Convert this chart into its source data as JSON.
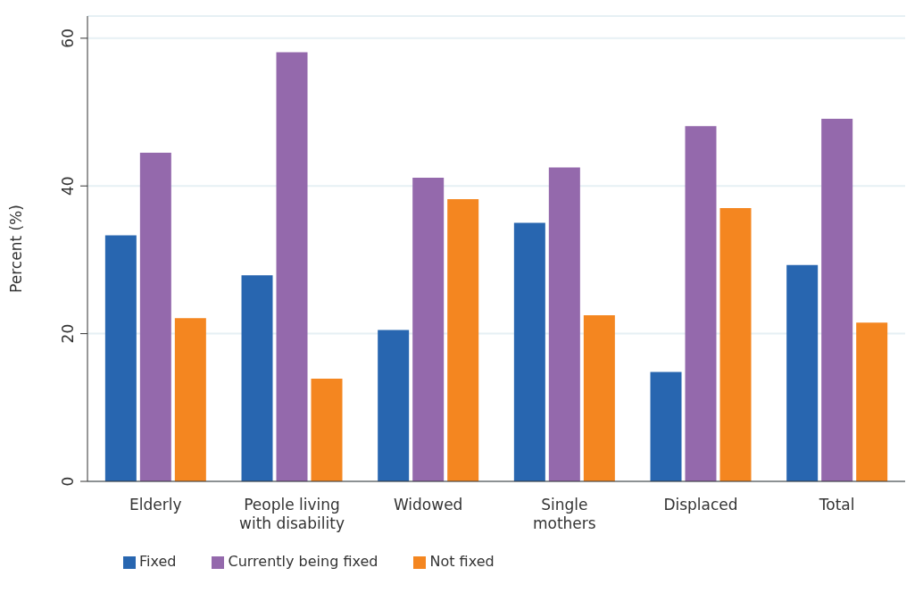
{
  "chart_data": {
    "type": "bar",
    "ylabel": "Percent (%)",
    "categories": [
      "Elderly",
      "People living\nwith disability",
      "Widowed",
      "Single\nmothers",
      "Displaced",
      "Total"
    ],
    "series": [
      {
        "name": "Fixed",
        "color": "#2866b0",
        "values": [
          33.3,
          27.9,
          20.5,
          35.0,
          14.8,
          29.3
        ]
      },
      {
        "name": "Currently being fixed",
        "color": "#9469ac",
        "values": [
          44.5,
          58.1,
          41.1,
          42.5,
          48.1,
          49.1
        ]
      },
      {
        "name": "Not fixed",
        "color": "#f48620",
        "values": [
          22.1,
          13.9,
          38.2,
          22.5,
          37.0,
          21.5
        ]
      }
    ],
    "ylim": [
      0,
      63
    ],
    "yticks": [
      0,
      20,
      40,
      60
    ],
    "grid": "y",
    "legend": "bottom left"
  }
}
